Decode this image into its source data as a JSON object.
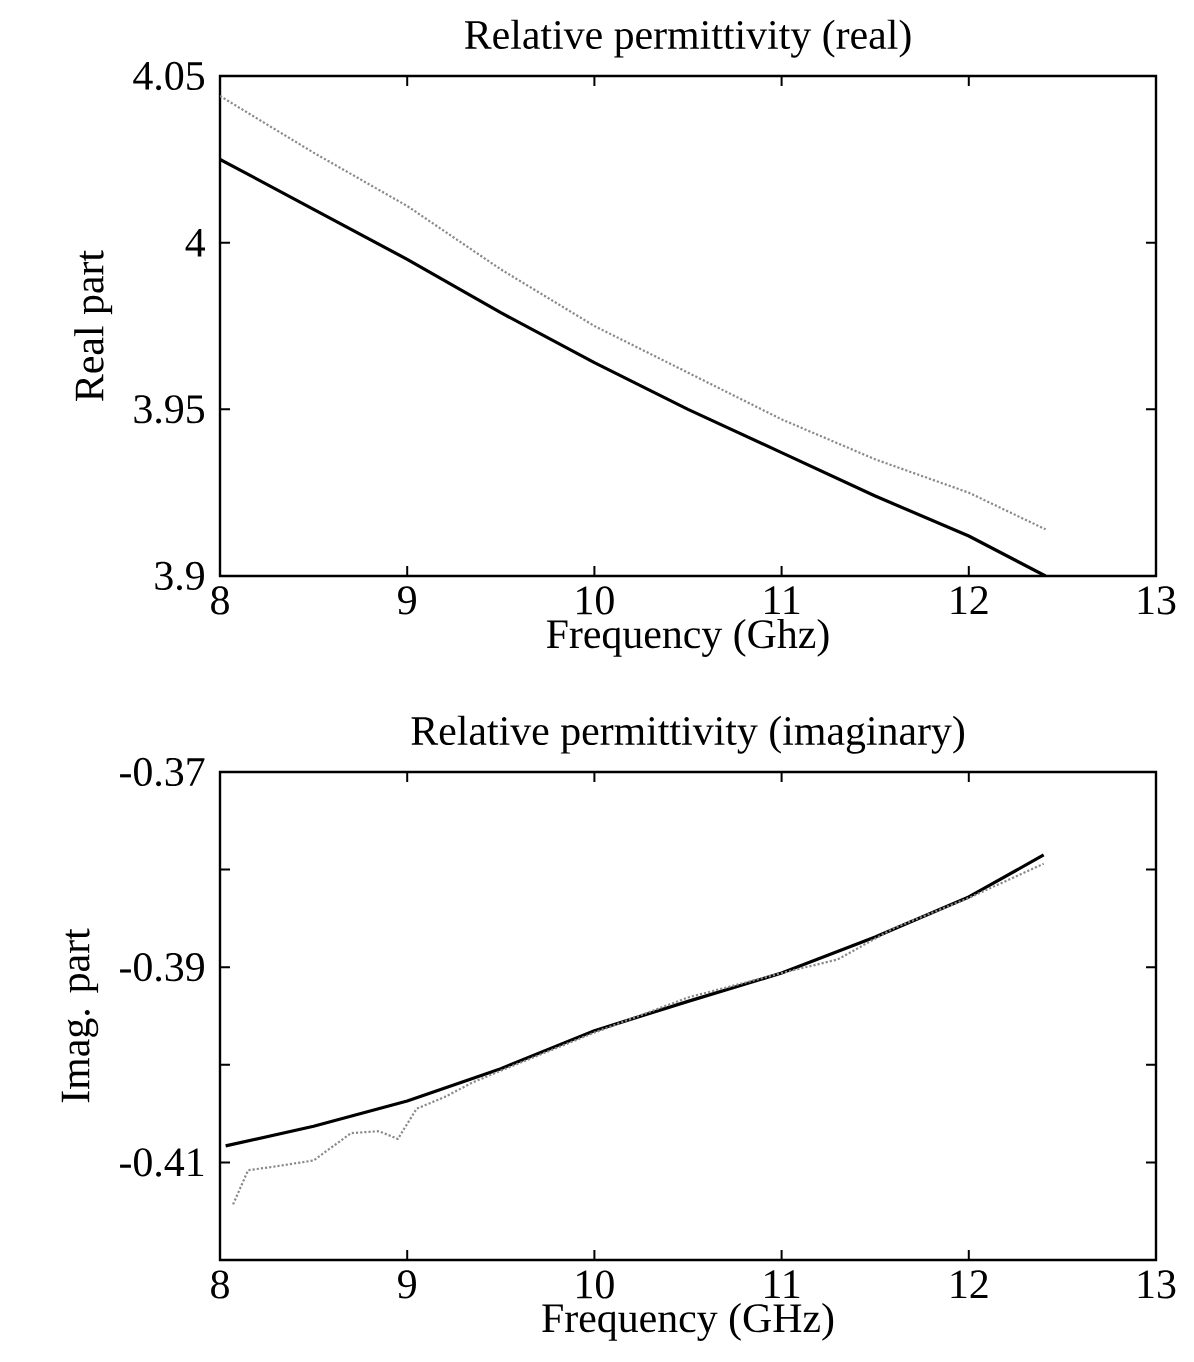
{
  "chart_data": [
    {
      "type": "line",
      "title": "Relative permittivity (real)",
      "xlabel": "Frequency (Ghz)",
      "ylabel": "Real part",
      "xlim": [
        8,
        13
      ],
      "ylim": [
        3.9,
        4.05
      ],
      "xticks": [
        8,
        9,
        10,
        11,
        12,
        13
      ],
      "yticks": [
        3.9,
        3.95,
        4,
        4.05
      ],
      "series": [
        {
          "color": "#000000",
          "line_style": "solid",
          "x": [
            8.0,
            8.5,
            9,
            9.5,
            10,
            10.5,
            11,
            11.5,
            12,
            12.41
          ],
          "values": [
            4.025,
            4.01,
            3.995,
            3.979,
            3.964,
            3.95,
            3.937,
            3.924,
            3.912,
            3.9
          ]
        },
        {
          "color": "#8a8a8a",
          "line_style": "dotted",
          "x": [
            8.0,
            8.5,
            9,
            9.5,
            10,
            10.5,
            11,
            11.5,
            12,
            12.41
          ],
          "values": [
            4.044,
            4.027,
            4.011,
            3.992,
            3.975,
            3.961,
            3.947,
            3.935,
            3.925,
            3.914
          ]
        }
      ]
    },
    {
      "type": "line",
      "title": "Relative permittivity (imaginary)",
      "xlabel": "Frequency (GHz)",
      "ylabel": "Imag. part",
      "xlim": [
        8,
        13
      ],
      "ylim": [
        -0.42,
        -0.37
      ],
      "xticks": [
        8,
        9,
        10,
        11,
        12,
        13
      ],
      "yticks": [
        {
          "value": -0.42,
          "label": null
        },
        -0.41,
        {
          "value": -0.4,
          "label": null
        },
        -0.39,
        {
          "value": -0.38,
          "label": null
        },
        -0.37
      ],
      "series": [
        {
          "color": "#000000",
          "line_style": "solid",
          "x": [
            8.03,
            8.5,
            9,
            9.5,
            10,
            10.5,
            11,
            11.5,
            12,
            12.4
          ],
          "values": [
            -0.4083,
            -0.4063,
            -0.4037,
            -0.4004,
            -0.3965,
            -0.3935,
            -0.3906,
            -0.3869,
            -0.3828,
            -0.3785
          ]
        },
        {
          "color": "#8a8a8a",
          "line_style": "dotted",
          "x": [
            8.07,
            8.15,
            8.3,
            8.5,
            8.6,
            8.7,
            8.85,
            8.95,
            9.05,
            9.2,
            9.35,
            9.5,
            10,
            10.5,
            11,
            11.3,
            11.6,
            12,
            12.4
          ],
          "values": [
            -0.4143,
            -0.4108,
            -0.4104,
            -0.4098,
            -0.4084,
            -0.407,
            -0.4068,
            -0.4076,
            -0.4045,
            -0.4033,
            -0.4018,
            -0.4006,
            -0.3967,
            -0.3931,
            -0.3906,
            -0.3892,
            -0.386,
            -0.3829,
            -0.3794
          ]
        }
      ]
    }
  ]
}
